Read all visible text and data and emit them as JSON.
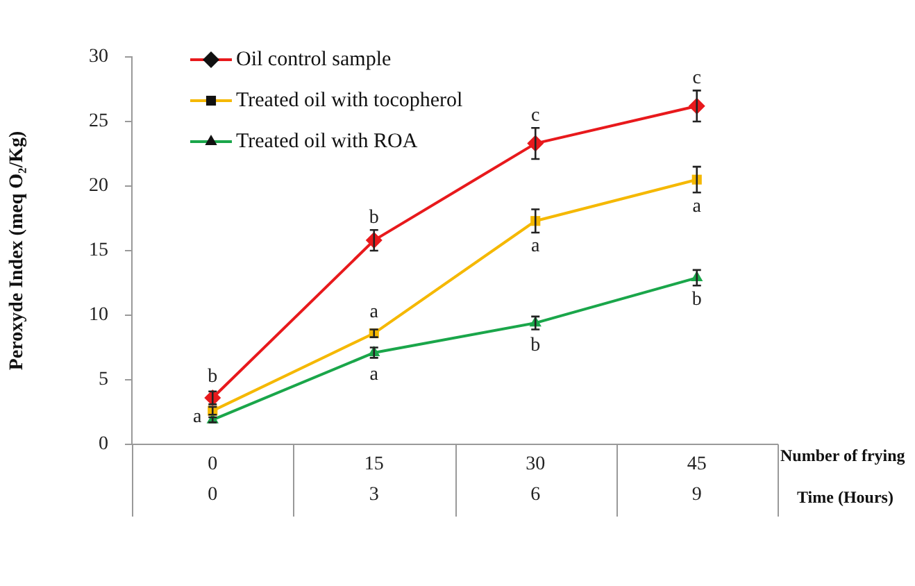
{
  "chart_data": {
    "type": "line",
    "ylabel": "Peroxyde Index (meq O₂/Kg)",
    "xlabel": "Number of frying",
    "x2label": "Time (Hours)",
    "categories": [
      "0",
      "15",
      "30",
      "45"
    ],
    "x2lim": [
      -1.5,
      10.5
    ],
    "x2ticks": [
      0,
      3,
      6,
      9
    ],
    "ylim": [
      0,
      30
    ],
    "yticks": [
      0,
      5,
      10,
      15,
      20,
      25,
      30
    ],
    "grid": false,
    "legend": "top left",
    "line_style": "solid",
    "series": [
      {
        "name": "Oil control sample",
        "color": "#e8191c",
        "marker": "diamond",
        "values": [
          3.6,
          15.8,
          23.3,
          26.2
        ],
        "errors": [
          0.5,
          0.8,
          1.2,
          1.2
        ],
        "value_labels": [
          "b",
          "b",
          "c",
          "c"
        ]
      },
      {
        "name": "Treated oil with tocopherol",
        "color": "#f5b800",
        "marker": "square",
        "values": [
          2.6,
          8.6,
          17.3,
          20.5
        ],
        "errors": [
          0.3,
          0.3,
          0.9,
          1.0
        ],
        "value_labels": [
          null,
          "a",
          "a",
          "a"
        ]
      },
      {
        "name": "Treated oil with ROA",
        "color": "#1aa64a",
        "marker": "triangle",
        "values": [
          1.9,
          7.1,
          9.4,
          12.9
        ],
        "errors": [
          0.2,
          0.4,
          0.5,
          0.6
        ],
        "value_labels": [
          "a",
          "a",
          "b",
          "b"
        ]
      }
    ]
  }
}
